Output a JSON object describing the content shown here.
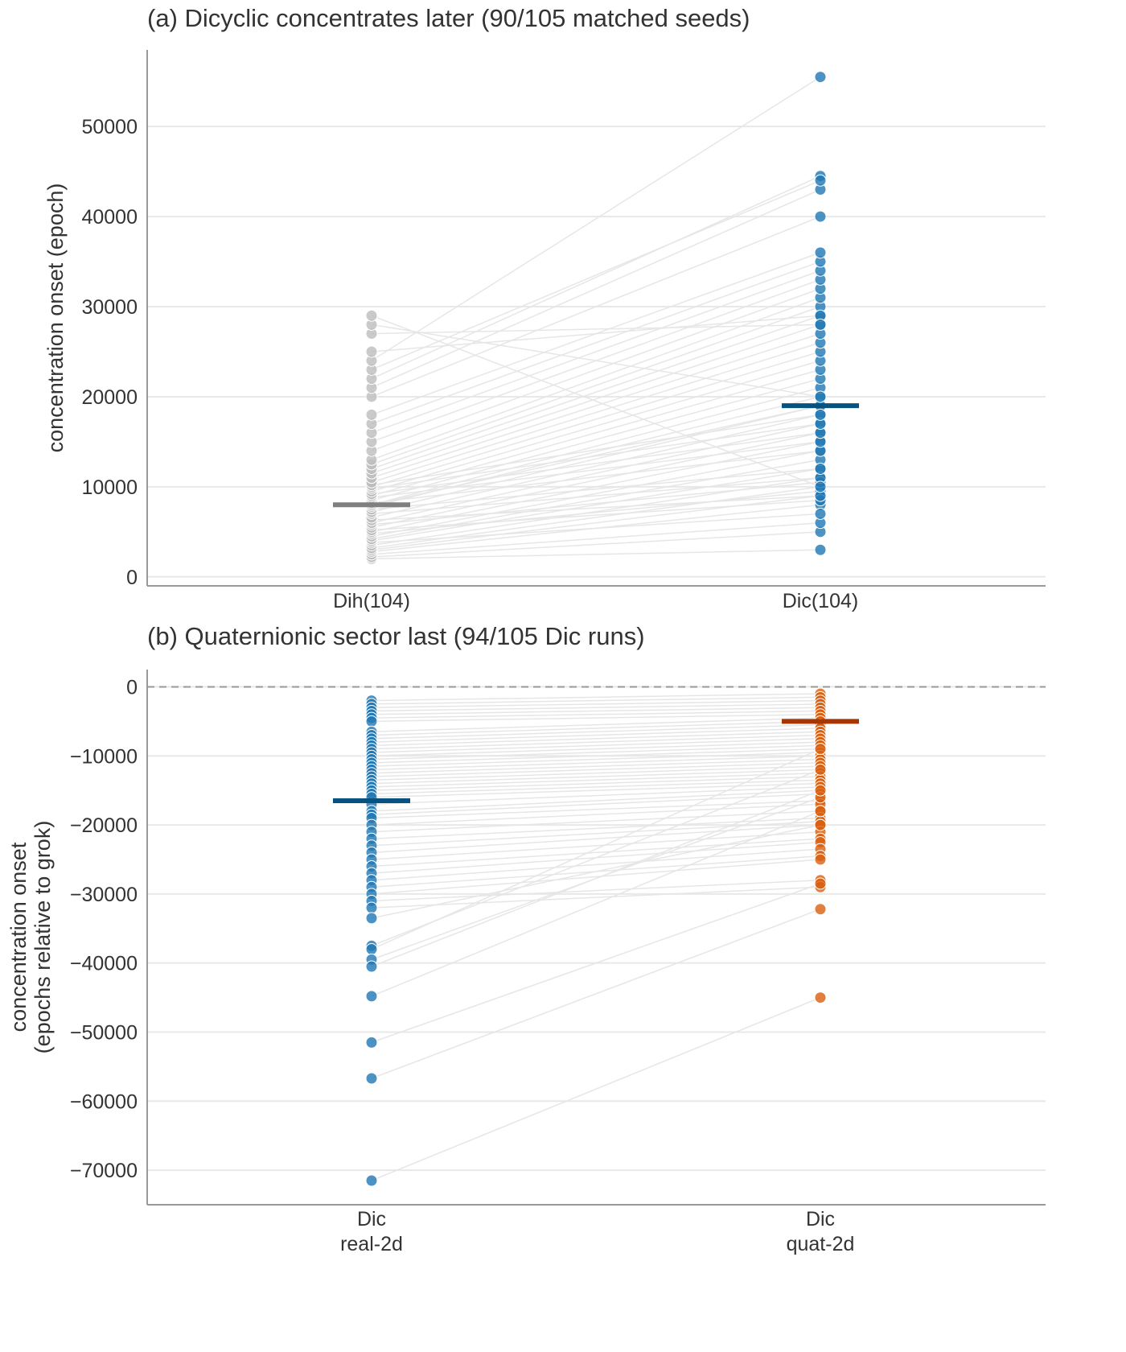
{
  "chart_data": [
    {
      "type": "scatter",
      "title": "(a) Dicyclic concentrates later (90/105 matched seeds)",
      "ylabel": [
        "concentration onset (epoch)"
      ],
      "categories": [
        "Dih(104)",
        "Dic(104)"
      ],
      "ylim": [
        -1000,
        58500
      ],
      "yticks": [
        0,
        10000,
        20000,
        30000,
        40000,
        50000
      ],
      "ytick_labels": [
        "0",
        "10000",
        "20000",
        "30000",
        "40000",
        "50000"
      ],
      "grid": "horizontal",
      "colors": {
        "left": "#bdbdbd",
        "right": "#1f78b4",
        "left_median": "#808080",
        "right_median": "#08527f",
        "line": "#e6e6e6"
      },
      "medians": [
        8000,
        19000
      ],
      "paired_lines": true,
      "series": [
        {
          "values": [
            2000,
            2200,
            2500,
            2800,
            3000,
            3200,
            3500,
            3800,
            4000,
            4200,
            4500,
            4800,
            5000,
            5200,
            5500,
            5800,
            6000,
            6300,
            6600,
            7000,
            7200,
            7500,
            7800,
            8000,
            8000,
            8200,
            8500,
            8800,
            9000,
            9200,
            9500,
            9800,
            10000,
            10200,
            10500,
            11000,
            11500,
            12000,
            12500,
            13000,
            14000,
            15000,
            16000,
            17000,
            18000,
            20000,
            21000,
            22000,
            23000,
            24000,
            25000,
            27000,
            28000,
            29000
          ],
          "pair": [
            3000,
            5000,
            6000,
            8000,
            9000,
            10000,
            11000,
            7000,
            12000,
            13000,
            14000,
            9500,
            15000,
            8500,
            16000,
            10500,
            17000,
            9000,
            18000,
            11000,
            19000,
            12000,
            20000,
            19000,
            21000,
            14000,
            22000,
            15000,
            23000,
            16000,
            24000,
            17000,
            25000,
            18000,
            26000,
            27000,
            28000,
            29000,
            30000,
            31000,
            32000,
            33000,
            34000,
            35000,
            36000,
            40000,
            43000,
            44500,
            44000,
            55500,
            29000,
            28000,
            20000,
            10000
          ]
        }
      ]
    },
    {
      "type": "scatter",
      "title": "(b) Quaternionic sector last (94/105 Dic runs)",
      "ylabel": [
        "concentration onset",
        "(epochs relative to grok)"
      ],
      "categories": [
        "Dic\nreal-2d",
        "Dic\nquat-2d"
      ],
      "ylim": [
        -75000,
        2500
      ],
      "yticks": [
        0,
        -10000,
        -20000,
        -30000,
        -40000,
        -50000,
        -60000,
        -70000
      ],
      "ytick_labels": [
        "0",
        "−10000",
        "−20000",
        "−30000",
        "−40000",
        "−50000",
        "−60000",
        "−70000"
      ],
      "grid": "horizontal",
      "reference_line": 0,
      "colors": {
        "left": "#1f78b4",
        "right": "#d95f0e",
        "left_median": "#08527f",
        "right_median": "#a63603",
        "line": "#e6e6e6"
      },
      "medians": [
        -16500,
        -5000
      ],
      "paired_lines": true,
      "series": [
        {
          "values": [
            -2000,
            -2500,
            -3000,
            -3500,
            -4000,
            -4500,
            -5000,
            -6500,
            -7000,
            -7500,
            -8000,
            -8500,
            -9000,
            -9500,
            -10000,
            -10500,
            -11000,
            -11500,
            -12000,
            -12500,
            -13000,
            -13500,
            -14000,
            -14500,
            -15000,
            -15500,
            -16000,
            -17000,
            -18000,
            -18500,
            -19000,
            -20000,
            -21000,
            -22000,
            -23000,
            -24000,
            -25000,
            -26000,
            -27000,
            -28000,
            -29000,
            -30000,
            -31000,
            -32000,
            -33500,
            -37500,
            -38000,
            -39500,
            -40500,
            -44800,
            -51500,
            -56700,
            -71500
          ],
          "pair": [
            -1000,
            -1500,
            -2000,
            -2500,
            -3000,
            -3500,
            -4000,
            -4500,
            -5000,
            -5500,
            -6000,
            -6500,
            -7000,
            -7500,
            -8000,
            -8500,
            -9000,
            -9500,
            -10000,
            -10500,
            -11000,
            -11500,
            -12000,
            -12500,
            -13000,
            -13500,
            -14000,
            -14500,
            -15000,
            -15500,
            -16500,
            -17000,
            -18000,
            -19000,
            -19500,
            -20000,
            -21000,
            -22000,
            -22500,
            -23500,
            -24500,
            -25000,
            -28000,
            -29000,
            -20000,
            -12000,
            -9000,
            -16000,
            -15000,
            -18000,
            -28500,
            -32200,
            -45000
          ]
        }
      ]
    }
  ]
}
